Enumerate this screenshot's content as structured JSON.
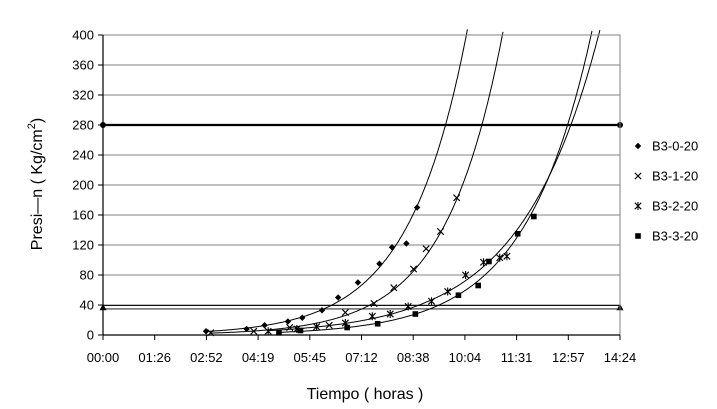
{
  "chart_data": {
    "type": "scatter",
    "xlabel": "Tiempo ( horas )",
    "ylabel": "Presi—n ( Kg/cm",
    "ylabel_sup": "2",
    "ylabel_close": ")",
    "x_unit": "hours",
    "xlim": [
      0,
      14.4
    ],
    "ylim": [
      0,
      400
    ],
    "x_ticks": [
      "00:00",
      "01:26",
      "02:52",
      "04:19",
      "05:45",
      "07:12",
      "08:38",
      "10:04",
      "11:31",
      "12:57",
      "14:24"
    ],
    "y_ticks": [
      "0",
      "40",
      "80",
      "120",
      "160",
      "200",
      "240",
      "280",
      "320",
      "360",
      "400"
    ],
    "grid": "horizontal",
    "legend_position": "right",
    "reference_lines": [
      {
        "y": 280,
        "style": "thick"
      },
      {
        "y": 37,
        "style": "double-thin"
      }
    ],
    "series": [
      {
        "name": "B3-0-20",
        "marker": "diamond",
        "x": [
          2.87,
          4.0,
          4.5,
          5.15,
          5.55,
          6.1,
          6.55,
          7.1,
          7.7,
          8.05,
          8.45,
          8.75
        ],
        "y": [
          5,
          8,
          13,
          18,
          23,
          33,
          50,
          70,
          95,
          117,
          122,
          170
        ]
      },
      {
        "name": "B3-1-20",
        "marker": "x",
        "x": [
          3.0,
          4.2,
          5.2,
          6.3,
          6.75,
          7.55,
          8.1,
          8.65,
          9.0,
          9.4,
          9.85
        ],
        "y": [
          3,
          5,
          10,
          13,
          30,
          42,
          63,
          88,
          115,
          138,
          183
        ]
      },
      {
        "name": "B3-2-20",
        "marker": "star",
        "x": [
          4.6,
          5.4,
          5.95,
          6.75,
          7.5,
          8.0,
          8.5,
          9.15,
          9.6,
          10.1,
          10.6,
          11.05,
          11.25
        ],
        "y": [
          5,
          8,
          11,
          16,
          25,
          28,
          38,
          45,
          58,
          80,
          97,
          103,
          105
        ]
      },
      {
        "name": "B3-3-20",
        "marker": "square",
        "x": [
          4.9,
          5.5,
          6.8,
          7.65,
          8.7,
          9.9,
          10.45,
          10.75,
          11.55,
          12.0
        ],
        "y": [
          3,
          6,
          10,
          15,
          28,
          53,
          66,
          98,
          135,
          158
        ]
      }
    ]
  }
}
